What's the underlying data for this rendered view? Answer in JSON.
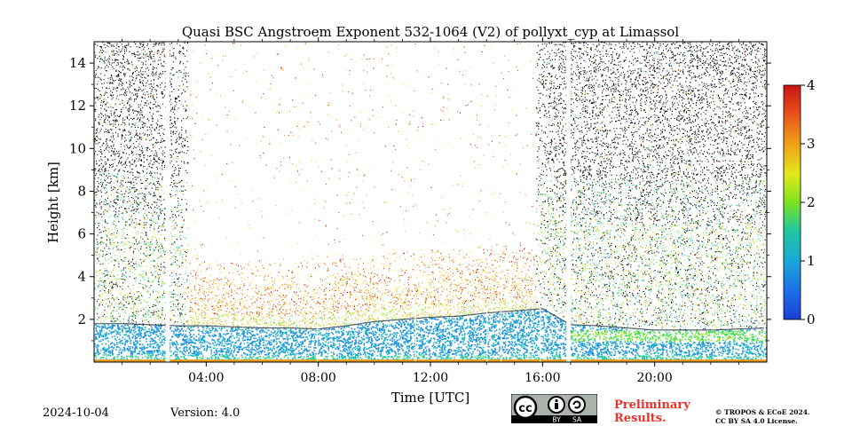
{
  "chart_data": {
    "type": "heatmap",
    "title": "Quasi BSC Angstroem Exponent 532-1064 (V2) of pollyxt_cyp at Limassol",
    "xlabel": "Time [UTC]",
    "ylabel": "Height [km]",
    "xlim": [
      0,
      24
    ],
    "ylim": [
      0,
      15
    ],
    "xticks": [
      4,
      8,
      12,
      16,
      20
    ],
    "xtick_labels": [
      "04:00",
      "08:00",
      "12:00",
      "16:00",
      "20:00"
    ],
    "yticks": [
      2,
      4,
      6,
      8,
      10,
      12,
      14
    ],
    "ytick_labels": [
      "2",
      "4",
      "6",
      "8",
      "10",
      "12",
      "14"
    ],
    "colorbar": {
      "range": [
        0,
        4
      ],
      "ticks": [
        0,
        1,
        2,
        3,
        4
      ],
      "tick_labels": [
        "0",
        "1",
        "2",
        "3",
        "4"
      ],
      "colors": [
        "#1a3fd6",
        "#1e90e0",
        "#19c2b8",
        "#2edc6a",
        "#8ee61e",
        "#e8e81c",
        "#f0a018",
        "#e8501a",
        "#c81414"
      ]
    },
    "data_gaps_hours": [
      [
        2.55,
        2.7
      ],
      [
        16.85,
        17.0
      ]
    ],
    "thin_gaps_hours": [
      7.95,
      11.45,
      14.0,
      14.5,
      15.9
    ],
    "boundary_layer_top_km": {
      "x": [
        0,
        1,
        2,
        3,
        4,
        5,
        6,
        7,
        8,
        9,
        10,
        11,
        12,
        13,
        14,
        15,
        16,
        17,
        18,
        19,
        20,
        21,
        22,
        23,
        24
      ],
      "y": [
        1.8,
        1.8,
        1.75,
        1.7,
        1.7,
        1.65,
        1.6,
        1.6,
        1.55,
        1.7,
        1.9,
        2.0,
        2.1,
        2.15,
        2.3,
        2.4,
        2.5,
        1.75,
        1.7,
        1.6,
        1.5,
        1.5,
        1.5,
        1.55,
        1.6
      ]
    }
  },
  "footer": {
    "date": "2024-10-04",
    "version": "Version: 4.0",
    "preliminary_line1": "Preliminary",
    "preliminary_line2": "Results.",
    "copyright_line1": "© TROPOS & ECoE 2024.",
    "copyright_line2": "CC BY SA 4.0 License.",
    "badge_by": "BY",
    "badge_sa": "SA",
    "badge_cc": "cc"
  }
}
